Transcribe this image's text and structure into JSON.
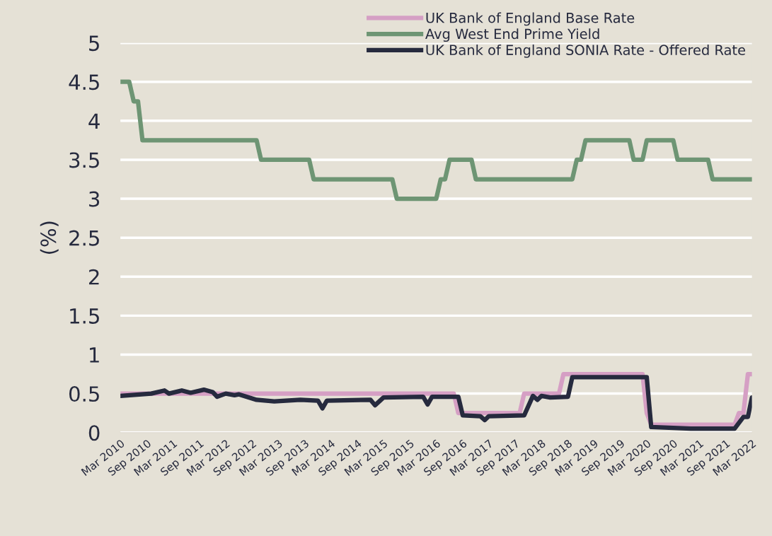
{
  "chart_data": {
    "type": "line",
    "ylabel": "(%)",
    "xlim": [
      "2010-03",
      "2022-03"
    ],
    "ylim": [
      0,
      5
    ],
    "yticks": [
      {
        "value": 0,
        "label": "0"
      },
      0.5,
      1,
      1.5,
      2,
      2.5,
      3,
      3.5,
      4,
      4.5,
      5
    ],
    "xticks": [
      {
        "value": "2010-03",
        "label": "Mar 2010"
      },
      {
        "value": "2010-09",
        "label": "Sep 2010"
      },
      {
        "value": "2011-03",
        "label": "Mar 2011"
      },
      {
        "value": "2011-09",
        "label": "Sep 2011"
      },
      {
        "value": "2012-03",
        "label": "Mar 2012"
      },
      {
        "value": "2012-09",
        "label": "Sep 2012"
      },
      {
        "value": "2013-03",
        "label": "Mar 2013"
      },
      {
        "value": "2013-09",
        "label": "Sep 2013"
      },
      {
        "value": "2014-03",
        "label": "Mar 2014"
      },
      {
        "value": "2014-09",
        "label": "Sep 2014"
      },
      {
        "value": "2015-03",
        "label": "Mar 2015"
      },
      {
        "value": "2015-09",
        "label": "Sep 2015"
      },
      {
        "value": "2016-03",
        "label": "Mar 2016"
      },
      {
        "value": "2016-09",
        "label": "Sep 2016"
      },
      {
        "value": "2017-03",
        "label": "Mar 2017"
      },
      {
        "value": "2017-09",
        "label": "Sep 2017"
      },
      {
        "value": "2018-03",
        "label": "Mar 2018"
      },
      {
        "value": "2018-09",
        "label": "Sep 2018"
      },
      {
        "value": "2019-03",
        "label": "Mar 2019"
      },
      {
        "value": "2019-09",
        "label": "Sep 2019"
      },
      {
        "value": "2020-03",
        "label": "Mar 2020"
      },
      {
        "value": "2020-09",
        "label": "Sep 2020"
      },
      {
        "value": "2021-03",
        "label": "Mar 2021"
      },
      {
        "value": "2021-09",
        "label": "Sep 2021"
      },
      {
        "value": "2022-03",
        "label": "Mar 2022"
      }
    ],
    "grid": "y",
    "legend": "top right",
    "marker": "none",
    "line_style": "solid",
    "series": [
      {
        "name": "UK Bank of England Base Rate",
        "color": "#d59fc4",
        "x": [
          "2010-03",
          "2016-07",
          "2016-08",
          "2017-10",
          "2017-11",
          "2018-07",
          "2018-08",
          "2020-02",
          "2020-03",
          "2020-04",
          "2021-11",
          "2021-12",
          "2022-01",
          "2022-02",
          "2022-03"
        ],
        "values": [
          0.5,
          0.5,
          0.25,
          0.25,
          0.5,
          0.5,
          0.75,
          0.75,
          0.25,
          0.1,
          0.1,
          0.25,
          0.25,
          0.75,
          0.75
        ]
      },
      {
        "name": "Avg West End Prime Yield",
        "color": "#6e9574",
        "x": [
          "2010-03",
          "2010-05",
          "2010-06",
          "2010-07",
          "2010-08",
          "2012-10",
          "2012-11",
          "2013-10",
          "2013-11",
          "2015-05",
          "2015-06",
          "2016-03",
          "2016-04",
          "2016-05",
          "2016-06",
          "2016-11",
          "2016-12",
          "2018-10",
          "2018-11",
          "2018-12",
          "2019-01",
          "2019-11",
          "2019-12",
          "2020-02",
          "2020-03",
          "2020-09",
          "2020-10",
          "2021-05",
          "2021-06",
          "2022-03"
        ],
        "values": [
          4.5,
          4.5,
          4.25,
          4.25,
          3.75,
          3.75,
          3.5,
          3.5,
          3.25,
          3.25,
          3.0,
          3.0,
          3.25,
          3.25,
          3.5,
          3.5,
          3.25,
          3.25,
          3.5,
          3.5,
          3.75,
          3.75,
          3.5,
          3.5,
          3.75,
          3.75,
          3.5,
          3.5,
          3.25,
          3.25
        ]
      },
      {
        "name": "UK Bank of England SONIA Rate - Offered Rate",
        "color": "#262a3e",
        "x": [
          "2010-03",
          "2010-10",
          "2011-01",
          "2011-02",
          "2011-05",
          "2011-07",
          "2011-10",
          "2011-12",
          "2012-01",
          "2012-03",
          "2012-05",
          "2012-06",
          "2012-10",
          "2013-02",
          "2013-08",
          "2013-12",
          "2014-01",
          "2014-02",
          "2014-12",
          "2015-01",
          "2015-03",
          "2015-12",
          "2016-01",
          "2016-02",
          "2016-08",
          "2016-09",
          "2017-01",
          "2017-02",
          "2017-03",
          "2017-11",
          "2018-01",
          "2018-02",
          "2018-03",
          "2018-05",
          "2018-09",
          "2018-10",
          "2020-03",
          "2020-04",
          "2021-01",
          "2021-11",
          "2022-01",
          "2022-02",
          "2022-03"
        ],
        "values": [
          0.47,
          0.5,
          0.54,
          0.5,
          0.54,
          0.51,
          0.55,
          0.52,
          0.46,
          0.5,
          0.48,
          0.49,
          0.42,
          0.4,
          0.42,
          0.41,
          0.31,
          0.41,
          0.42,
          0.35,
          0.45,
          0.46,
          0.36,
          0.46,
          0.46,
          0.22,
          0.21,
          0.16,
          0.21,
          0.22,
          0.47,
          0.42,
          0.47,
          0.45,
          0.46,
          0.71,
          0.71,
          0.07,
          0.05,
          0.05,
          0.2,
          0.2,
          0.45
        ]
      }
    ]
  }
}
